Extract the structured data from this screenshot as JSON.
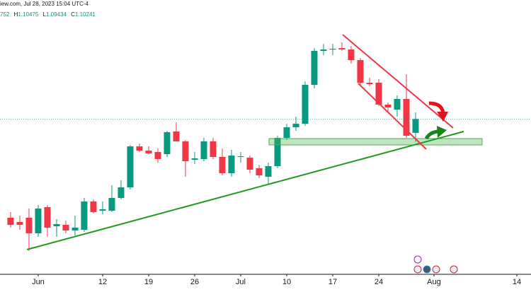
{
  "header": {
    "source": "iew.com, Jul 28, 2023 15:04 UTC-4",
    "open_fragment": "752",
    "ohlc_letters": [
      "H",
      "L",
      "C"
    ]
  },
  "chart_data": {
    "type": "candlestick",
    "x": [
      0,
      1,
      2,
      3,
      4,
      5,
      6,
      7,
      8,
      9,
      10,
      11,
      12,
      13,
      14,
      15,
      16,
      17,
      18,
      19,
      20,
      21,
      22,
      23,
      24,
      25,
      26,
      27,
      28,
      29,
      30,
      31,
      32,
      33,
      34,
      35,
      36,
      37,
      38,
      39,
      40,
      41,
      42,
      43,
      44
    ],
    "open": [
      1.0675,
      1.066,
      1.0675,
      1.062,
      1.07125,
      1.0645,
      1.065,
      1.063,
      1.06325,
      1.07325,
      1.07,
      1.07,
      1.0745,
      1.07825,
      1.09275,
      1.09125,
      1.09075,
      1.09,
      1.098,
      1.0945,
      1.088,
      1.08825,
      1.0945,
      1.089,
      1.08325,
      1.089,
      1.08875,
      1.085,
      1.082,
      1.08575,
      1.09575,
      1.0995,
      1.10075,
      1.1145,
      1.1265,
      1.127,
      1.1275,
      1.127,
      1.12325,
      1.11525,
      1.11525,
      1.1075,
      1.10575,
      1.1095,
      1.09752
    ],
    "high": [
      1.0695,
      1.06825,
      1.07075,
      1.072,
      1.072,
      1.067,
      1.0665,
      1.06825,
      1.0745,
      1.074,
      1.07325,
      1.079,
      1.08075,
      1.09325,
      1.09375,
      1.09275,
      1.092,
      1.09825,
      1.10125,
      1.095,
      1.09075,
      1.09575,
      1.09575,
      1.092,
      1.0915,
      1.09075,
      1.0895,
      1.08625,
      1.087,
      1.0965,
      1.10075,
      1.10325,
      1.11575,
      1.1275,
      1.129,
      1.129,
      1.1295,
      1.12825,
      1.124,
      1.117,
      1.1165,
      1.10825,
      1.11075,
      1.11825,
      1.10475
    ],
    "low": [
      1.064,
      1.06325,
      1.0558,
      1.06075,
      1.06075,
      1.06075,
      1.062,
      1.06125,
      1.0625,
      1.069,
      1.06875,
      1.0695,
      1.074,
      1.0775,
      1.09075,
      1.09,
      1.087,
      1.089,
      1.0945,
      1.082,
      1.0865,
      1.0875,
      1.08825,
      1.0825,
      1.082,
      1.087,
      1.08325,
      1.0815,
      1.0795,
      1.085,
      1.095,
      1.09825,
      1.1,
      1.11325,
      1.125,
      1.125,
      1.1265,
      1.122,
      1.1145,
      1.114,
      1.107,
      1.105,
      1.10325,
      1.09575,
      1.09434
    ],
    "close": [
      1.065,
      1.065,
      1.062,
      1.07075,
      1.064,
      1.06525,
      1.063,
      1.064,
      1.07325,
      1.0695,
      1.0705,
      1.0745,
      1.07825,
      1.09275,
      1.09125,
      1.09025,
      1.08825,
      1.09775,
      1.0945,
      1.0875,
      1.0885,
      1.0945,
      1.089,
      1.08325,
      1.0895,
      1.08925,
      1.0845,
      1.0825,
      1.08575,
      1.09575,
      1.0995,
      1.10075,
      1.1145,
      1.1265,
      1.127,
      1.12725,
      1.127,
      1.12325,
      1.11525,
      1.11475,
      1.1075,
      1.1065,
      1.1095,
      1.0965,
      1.10241
    ],
    "up_color": "#089981",
    "down_color": "#f23645",
    "xlim": [
      -1.15,
      56.54
    ],
    "ylim": [
      1.0475,
      1.1445
    ],
    "xticks": [
      {
        "value": 3,
        "label": "Jun"
      },
      {
        "value": 10,
        "label": "12"
      },
      {
        "value": 15,
        "label": "19"
      },
      {
        "value": 20,
        "label": "26"
      },
      {
        "value": 25,
        "label": "Jul"
      },
      {
        "value": 30,
        "label": "10"
      },
      {
        "value": 35,
        "label": "17"
      },
      {
        "value": 40,
        "label": "24"
      },
      {
        "value": 46,
        "label": "Aug"
      },
      {
        "value": 55,
        "label": "14"
      }
    ],
    "price_line": true
  }
}
